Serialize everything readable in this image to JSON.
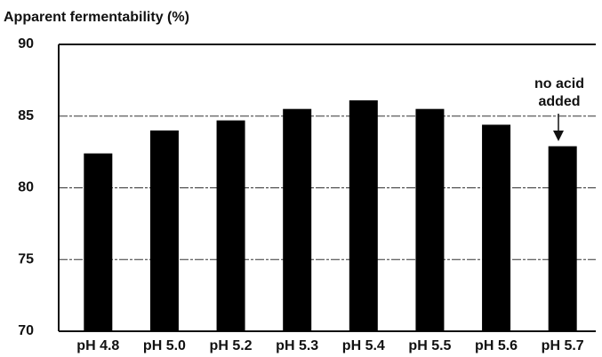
{
  "chart_data": {
    "type": "bar",
    "title": "Apparent fermentability (%)",
    "categories": [
      "pH 4.8",
      "pH 5.0",
      "pH 5.2",
      "pH 5.3",
      "pH 5.4",
      "pH 5.5",
      "pH 5.6",
      "pH 5.7"
    ],
    "values": [
      82.4,
      84.0,
      84.7,
      85.5,
      86.1,
      85.5,
      84.4,
      82.9
    ],
    "color": "#000000",
    "ylim": [
      70,
      90
    ],
    "yticks": [
      70,
      75,
      80,
      85,
      90
    ],
    "grid": true,
    "annotation": "no acid added"
  }
}
